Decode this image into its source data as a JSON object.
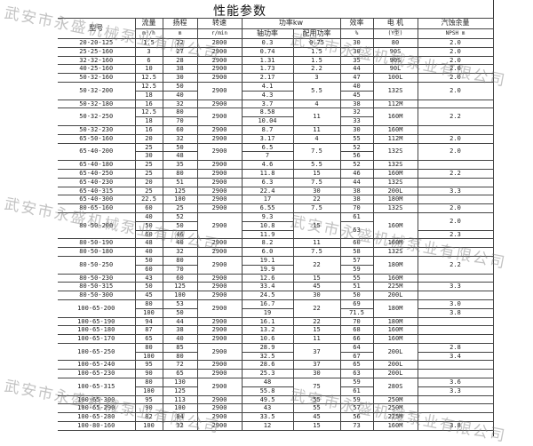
{
  "title": "性能参数",
  "headers": {
    "model": "型号",
    "flow": "流量",
    "flow_unit": "m³/h",
    "head": "扬程",
    "head_unit": "m",
    "speed": "转速",
    "speed_unit": "r/min",
    "power": "功率kw",
    "shaft": "轴功率",
    "rated": "配用功率",
    "eff": "效率",
    "eff_unit": "%",
    "motor": "电 机",
    "motor_unit": "(Y型)",
    "npsh": "汽蚀余量",
    "npsh_unit": "NPSH        m"
  },
  "watermark": "武安市永盛机械泵业有限公司",
  "rows": [
    {
      "model": "20-20-125",
      "flow": [
        "1.5"
      ],
      "head": [
        "22"
      ],
      "speed": "2800",
      "shaft": [
        "0.3"
      ],
      "power": "0.75",
      "eff": [
        "30"
      ],
      "motor": "80",
      "npsh": [
        "2.0"
      ]
    },
    {
      "model": "25-25-160",
      "flow": [
        "3"
      ],
      "head": [
        "27"
      ],
      "speed": "2900",
      "shaft": [
        "0.74"
      ],
      "power": "1.5",
      "eff": [
        "30"
      ],
      "motor": "90S",
      "npsh": [
        "2.0"
      ]
    },
    {
      "model": "32-32-160",
      "flow": [
        "6"
      ],
      "head": [
        "28"
      ],
      "speed": "2900",
      "shaft": [
        "1.31"
      ],
      "power": "1.5",
      "eff": [
        "35"
      ],
      "motor": "90S",
      "npsh": [
        "2.0"
      ]
    },
    {
      "model": "40-25-160",
      "flow": [
        "10"
      ],
      "head": [
        "38"
      ],
      "speed": "2900",
      "shaft": [
        "1.73"
      ],
      "power": "2.2",
      "eff": [
        "44"
      ],
      "motor": "90L",
      "npsh": [
        "2.0"
      ]
    },
    {
      "model": "50-32-160",
      "flow": [
        "12.5"
      ],
      "head": [
        "30"
      ],
      "speed": "2900",
      "shaft": [
        "2.17"
      ],
      "power": "3",
      "eff": [
        "47"
      ],
      "motor": "100L",
      "npsh": [
        "2.0"
      ]
    },
    {
      "model": "50-32-200",
      "flow": [
        "12.5",
        "18"
      ],
      "head": [
        "50",
        "40"
      ],
      "speed": "2900",
      "shaft": [
        "4.1",
        "4.3"
      ],
      "power": "5.5",
      "eff": [
        "40",
        "45"
      ],
      "motor": "132S",
      "npsh": [
        "2.0"
      ]
    },
    {
      "model": "50-32-180",
      "flow": [
        "16"
      ],
      "head": [
        "32"
      ],
      "speed": "2900",
      "shaft": [
        "3.7"
      ],
      "power": "4",
      "eff": [
        "38"
      ],
      "motor": "112M",
      "npsh": [
        ""
      ]
    },
    {
      "model": "50-32-250",
      "flow": [
        "12.5",
        "18"
      ],
      "head": [
        "80",
        "70"
      ],
      "speed": "2900",
      "shaft": [
        "8.58",
        "10.04"
      ],
      "power": "11",
      "eff": [
        "32",
        "33"
      ],
      "motor": "160M",
      "npsh": [
        "2.2"
      ]
    },
    {
      "model": "50-32-230",
      "flow": [
        "16"
      ],
      "head": [
        "60"
      ],
      "speed": "2900",
      "shaft": [
        "8.7"
      ],
      "power": "11",
      "eff": [
        "30"
      ],
      "motor": "160M",
      "npsh": [
        ""
      ]
    },
    {
      "model": "65-50-160",
      "flow": [
        "20"
      ],
      "head": [
        "32"
      ],
      "speed": "2900",
      "shaft": [
        "3.17"
      ],
      "power": "4",
      "eff": [
        "55"
      ],
      "motor": "112M",
      "npsh": [
        "2.0"
      ]
    },
    {
      "model": "65-40-200",
      "flow": [
        "25",
        "30"
      ],
      "head": [
        "50",
        "48"
      ],
      "speed": "2900",
      "shaft": [
        "6.5",
        "7"
      ],
      "power": "7.5",
      "eff": [
        "52",
        "56"
      ],
      "motor": "132S",
      "npsh": [
        "2.0"
      ]
    },
    {
      "model": "65-40-180",
      "flow": [
        "25"
      ],
      "head": [
        "35"
      ],
      "speed": "2900",
      "shaft": [
        "4.6"
      ],
      "power": "5.5",
      "eff": [
        "52"
      ],
      "motor": "132S",
      "npsh": [
        ""
      ]
    },
    {
      "model": "65-40-250",
      "flow": [
        "25"
      ],
      "head": [
        "80"
      ],
      "speed": "2900",
      "shaft": [
        "11.8"
      ],
      "power": "15",
      "eff": [
        "46"
      ],
      "motor": "160M",
      "npsh": [
        "2.2"
      ]
    },
    {
      "model": "65-40-230",
      "flow": [
        "20"
      ],
      "head": [
        "51"
      ],
      "speed": "2900",
      "shaft": [
        "6.3"
      ],
      "power": "7.5",
      "eff": [
        "44"
      ],
      "motor": "132S",
      "npsh": [
        ""
      ]
    },
    {
      "model": "65-40-315",
      "flow": [
        "25"
      ],
      "head": [
        "125"
      ],
      "speed": "2900",
      "shaft": [
        "22.4"
      ],
      "power": "30",
      "eff": [
        "38"
      ],
      "motor": "200L",
      "npsh": [
        "3.3"
      ]
    },
    {
      "model": "65-40-300",
      "flow": [
        "22.5"
      ],
      "head": [
        "100"
      ],
      "speed": "2900",
      "shaft": [
        "17"
      ],
      "power": "22",
      "eff": [
        "38"
      ],
      "motor": "180M",
      "npsh": [
        ""
      ]
    },
    {
      "model": "80-65-160",
      "flow": [
        "60"
      ],
      "head": [
        "25"
      ],
      "speed": "2900",
      "shaft": [
        "6.55"
      ],
      "power": "7.5",
      "eff": [
        "70"
      ],
      "motor": "132S",
      "npsh": [
        "2.0"
      ]
    },
    {
      "model": "80-50-200",
      "flow": [
        "40",
        "50",
        "60"
      ],
      "head": [
        "52",
        "50",
        "46"
      ],
      "speed": "2900",
      "shaft": [
        "9.3",
        "10.8",
        "11.9"
      ],
      "power": "15",
      "eff": [
        "61",
        "63"
      ],
      "eff_rows": [
        1,
        2
      ],
      "motor": "160M",
      "npsh": [
        "2.0",
        "2.3"
      ],
      "npsh_rows": [
        2,
        1
      ]
    },
    {
      "model": "80-50-190",
      "flow": [
        "48"
      ],
      "head": [
        "40"
      ],
      "speed": "2900",
      "shaft": [
        "8.2"
      ],
      "power": "11",
      "eff": [
        "60"
      ],
      "motor": "160M",
      "npsh": [
        ""
      ]
    },
    {
      "model": "80-50-180",
      "flow": [
        "40"
      ],
      "head": [
        "32"
      ],
      "speed": "2900",
      "shaft": [
        "6.0"
      ],
      "power": "7.5",
      "eff": [
        "58"
      ],
      "motor": "132S",
      "npsh": [
        ""
      ]
    },
    {
      "model": "80-50-250",
      "flow": [
        "50",
        "60"
      ],
      "head": [
        "80",
        "70"
      ],
      "speed": "2900",
      "shaft": [
        "19.1",
        "19.9"
      ],
      "power": "22",
      "eff": [
        "57",
        "59"
      ],
      "motor": "180M",
      "npsh": [
        "2.2"
      ]
    },
    {
      "model": "80-50-230",
      "flow": [
        "43"
      ],
      "head": [
        "60"
      ],
      "speed": "2900",
      "shaft": [
        "12.6"
      ],
      "power": "15",
      "eff": [
        "55"
      ],
      "motor": "160M",
      "npsh": [
        ""
      ]
    },
    {
      "model": "80-50-315",
      "flow": [
        "50"
      ],
      "head": [
        "125"
      ],
      "speed": "2900",
      "shaft": [
        "33.4"
      ],
      "power": "45",
      "eff": [
        "51"
      ],
      "motor": "225M",
      "npsh": [
        "3.3"
      ]
    },
    {
      "model": "80-50-300",
      "flow": [
        "45"
      ],
      "head": [
        "100"
      ],
      "speed": "2900",
      "shaft": [
        "24.5"
      ],
      "power": "30",
      "eff": [
        "50"
      ],
      "motor": "200L",
      "npsh": [
        ""
      ]
    },
    {
      "model": "100-65-200",
      "flow": [
        "80",
        "100"
      ],
      "head": [
        "53",
        "50"
      ],
      "speed": "2900",
      "shaft": [
        "16.7",
        "19"
      ],
      "power": "22",
      "eff": [
        "69",
        "71.5"
      ],
      "motor": "180M",
      "npsh": [
        "3.0",
        "3.8"
      ]
    },
    {
      "model": "100-65-190",
      "flow": [
        "94"
      ],
      "head": [
        "44"
      ],
      "speed": "2900",
      "shaft": [
        "16.1"
      ],
      "power": "22",
      "eff": [
        "70"
      ],
      "motor": "180M",
      "npsh": [
        ""
      ]
    },
    {
      "model": "100-65-180",
      "flow": [
        "87"
      ],
      "head": [
        "38"
      ],
      "speed": "2900",
      "shaft": [
        "13.2"
      ],
      "power": "15",
      "eff": [
        "68"
      ],
      "motor": "160M",
      "npsh": [
        ""
      ]
    },
    {
      "model": "100-65-170",
      "flow": [
        "65"
      ],
      "head": [
        "40"
      ],
      "speed": "2900",
      "shaft": [
        "10.6"
      ],
      "power": "11",
      "eff": [
        "66"
      ],
      "motor": "160M",
      "npsh": [
        ""
      ]
    },
    {
      "model": "100-65-250",
      "flow": [
        "80",
        "100"
      ],
      "head": [
        "85",
        "80"
      ],
      "speed": "2900",
      "shaft": [
        "28.9",
        "32.5"
      ],
      "power": "37",
      "eff": [
        "64",
        "67"
      ],
      "motor": "200L",
      "npsh": [
        "2.8",
        "3.4"
      ]
    },
    {
      "model": "100-65-240",
      "flow": [
        "95"
      ],
      "head": [
        "72"
      ],
      "speed": "2900",
      "shaft": [
        "28.6"
      ],
      "power": "37",
      "eff": [
        "65"
      ],
      "motor": "200L",
      "npsh": [
        ""
      ]
    },
    {
      "model": "100-65-230",
      "flow": [
        "90"
      ],
      "head": [
        "65"
      ],
      "speed": "2900",
      "shaft": [
        "25.3"
      ],
      "power": "30",
      "eff": [
        "63"
      ],
      "motor": "200L",
      "npsh": [
        ""
      ]
    },
    {
      "model": "100-65-315",
      "flow": [
        "80",
        "100"
      ],
      "head": [
        "130",
        "125"
      ],
      "speed": "2900",
      "shaft": [
        "48",
        "55.8"
      ],
      "power": "75",
      "eff": [
        "59",
        "61"
      ],
      "motor": "280S",
      "npsh": [
        "3.6",
        "3.3"
      ]
    },
    {
      "model": "100-65-300",
      "flow": [
        "95"
      ],
      "head": [
        "113"
      ],
      "speed": "2900",
      "shaft": [
        "49.5"
      ],
      "power": "55",
      "eff": [
        "59"
      ],
      "motor": "250M",
      "npsh": [
        ""
      ]
    },
    {
      "model": "100-65-290",
      "flow": [
        "90"
      ],
      "head": [
        "100"
      ],
      "speed": "2900",
      "shaft": [
        "43"
      ],
      "power": "55",
      "eff": [
        "57"
      ],
      "motor": "250M",
      "npsh": [
        ""
      ]
    },
    {
      "model": "100-65-280",
      "flow": [
        "82"
      ],
      "head": [
        "84"
      ],
      "speed": "2900",
      "shaft": [
        "33.5"
      ],
      "power": "45",
      "eff": [
        "56"
      ],
      "motor": "225M",
      "npsh": [
        ""
      ]
    },
    {
      "model": "100-80-160",
      "flow": [
        "100"
      ],
      "head": [
        "32"
      ],
      "speed": "2900",
      "shaft": [
        "12"
      ],
      "power": "15",
      "eff": [
        "73"
      ],
      "motor": "160M",
      "npsh": [
        "3.8"
      ]
    }
  ]
}
